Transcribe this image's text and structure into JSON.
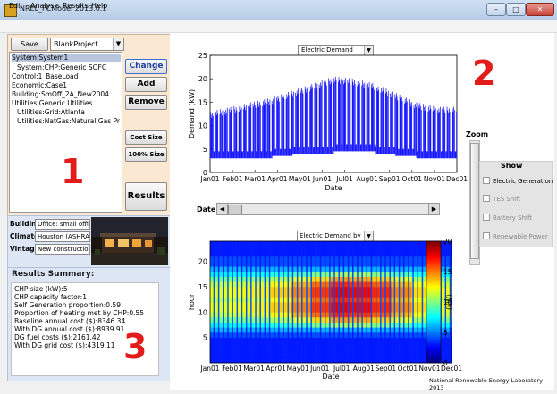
{
  "window": {
    "title": "NREL_FCModel 2013.0.1"
  },
  "menu": [
    "Edit",
    "Analysis",
    "Results",
    "Help"
  ],
  "project": {
    "save_label": "Save",
    "selected": "BlankProject"
  },
  "tree": [
    "System:System1",
    "System:CHP:Generic SOFC",
    "Control:1_BaseLoad",
    "Economic:Case1",
    "Building:SmOff_2A_New2004",
    "Utilities:Generic Utilities",
    "Utilities:Grid:Atlanta",
    "Utilities:NatGas:Natural Gas Pr"
  ],
  "buttons": {
    "change": "Change",
    "add": "Add",
    "remove": "Remove",
    "cost_size": "Cost Size",
    "pct_size": "100% Size",
    "results": "Results"
  },
  "annotations": [
    "1",
    "2",
    "3"
  ],
  "building": {
    "building_label": "Building",
    "building_value": "Office: small office",
    "climate_label": "Climate",
    "climate_value": "Houston (ASHRAE",
    "vintage_label": "Vintage",
    "vintage_value": "New construction"
  },
  "summary": {
    "title": "Results Summary:",
    "lines": [
      "CHP size (kW):5",
      "CHP capacity factor:1",
      "Self Generation proportion:0.59",
      "Proportion of heating met by CHP:0.55",
      "Baseline annual cost ($):8346.34",
      "With DG annual cost ($):8939.91",
      "DG fuel costs ($):2161.42",
      "With DG grid cost ($):4319.11"
    ]
  },
  "plot_controls": {
    "top_dropdown": "Electric Demand",
    "bottom_dropdown": "Electric Demand by Day",
    "date_label": "Date",
    "zoom_label": "Zoom",
    "show_title": "Show",
    "show_options": [
      {
        "label": "Electric Generation",
        "checked": false,
        "enabled": true
      },
      {
        "label": "TES Shift",
        "checked": false,
        "enabled": false
      },
      {
        "label": "Battery Shift",
        "checked": false,
        "enabled": false
      },
      {
        "label": "Renewable Power",
        "checked": false,
        "enabled": false
      }
    ]
  },
  "footer": "National Renewable Energy Laboratory 2013",
  "chart_data": [
    {
      "type": "line",
      "xlabel": "Date",
      "ylabel": "Demand (kW)",
      "ylim": [
        0,
        25
      ],
      "yticks": [
        0,
        5,
        10,
        15,
        20,
        25
      ],
      "xticks": [
        "Jan01",
        "Feb01",
        "Mar01",
        "Apr01",
        "May01",
        "Jun01",
        "Jul01",
        "Aug01",
        "Sep01",
        "Oct01",
        "Nov01",
        "Dec01"
      ],
      "color": "#0000ff",
      "series": [
        {
          "monthly_peak_kW": [
            13,
            14,
            15,
            16,
            17.5,
            19,
            20.5,
            20,
            19,
            17,
            15,
            14
          ],
          "monthly_base_kW": [
            3,
            3,
            3,
            3.5,
            4,
            4,
            4.5,
            4.5,
            4,
            3.5,
            3,
            3
          ]
        }
      ]
    },
    {
      "type": "heatmap",
      "xlabel": "Date",
      "ylabel": "hour",
      "ylim": [
        0,
        24
      ],
      "yticks": [
        5,
        10,
        15,
        20
      ],
      "xticks": [
        "Jan01",
        "Feb01",
        "Mar01",
        "Apr01",
        "May01",
        "Jun01",
        "Jul01",
        "Aug01",
        "Sep01",
        "Oct01",
        "Nov01",
        "Dec01"
      ],
      "colorbar_label": "(kW)",
      "colorbar_ticks": [
        0,
        5,
        10,
        15,
        20
      ],
      "colorbar_range": [
        0,
        20
      ],
      "hourly_profile_kW": [
        3,
        3,
        3,
        3,
        3,
        4,
        6,
        9,
        12,
        14,
        15,
        15,
        14,
        15,
        15,
        14,
        12,
        9,
        6,
        4,
        4,
        3,
        3,
        3
      ],
      "monthly_scale": [
        0.8,
        0.82,
        0.85,
        0.9,
        1.0,
        1.1,
        1.2,
        1.18,
        1.12,
        1.0,
        0.88,
        0.82
      ]
    }
  ]
}
